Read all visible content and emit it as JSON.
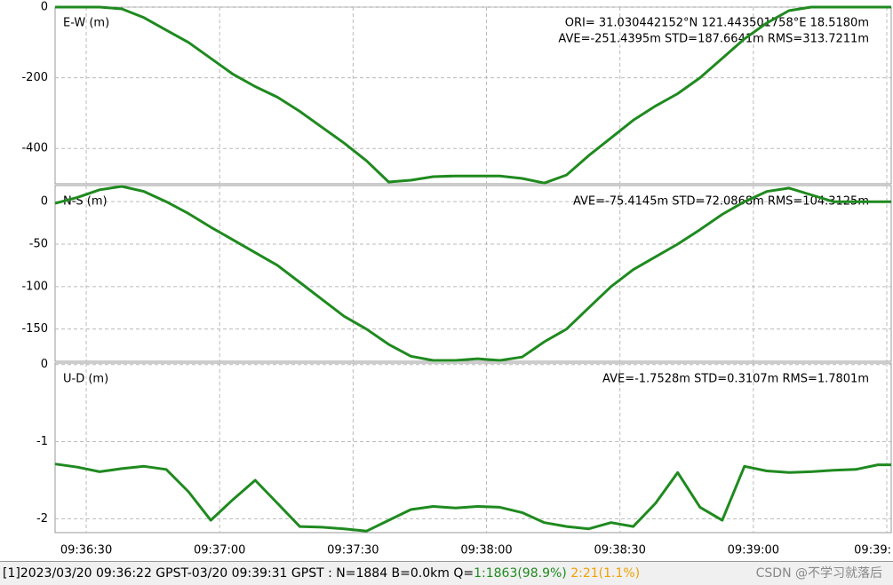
{
  "chart_data": [
    {
      "type": "line",
      "label": "E-W (m)",
      "annotations": [
        "ORI= 31.030442152°N  121.443501758°E 18.5180m",
        "AVE=-251.4395m STD=187.6641m RMS=313.7211m"
      ],
      "xlim": [
        34583,
        34771
      ],
      "ylim": [
        -500,
        0
      ],
      "yticks": [
        0,
        -200,
        -400
      ],
      "grid": true,
      "x": [
        34583,
        34588,
        34593,
        34598,
        34603,
        34608,
        34613,
        34618,
        34623,
        34628,
        34633,
        34638,
        34643,
        34648,
        34653,
        34658,
        34663,
        34668,
        34673,
        34678,
        34683,
        34688,
        34693,
        34698,
        34703,
        34708,
        34713,
        34718,
        34723,
        34728,
        34733,
        34738,
        34743,
        34748,
        34753,
        34758,
        34763,
        34768,
        34771
      ],
      "series": [
        {
          "color": "#1f8a1f",
          "values": [
            0,
            0,
            0,
            -5,
            -30,
            -65,
            -100,
            -145,
            -190,
            -225,
            -255,
            -295,
            -340,
            -385,
            -435,
            -495,
            -490,
            -480,
            -478,
            -478,
            -478,
            -485,
            -498,
            -475,
            -420,
            -370,
            -320,
            -280,
            -245,
            -200,
            -145,
            -90,
            -45,
            -10,
            0,
            0,
            0,
            0,
            0
          ]
        }
      ]
    },
    {
      "type": "line",
      "label": "N-S (m)",
      "annotations": [
        "AVE=-75.4145m STD=72.0868m RMS=104.3125m"
      ],
      "xlim": [
        34583,
        34771
      ],
      "ylim": [
        -188,
        19
      ],
      "yticks": [
        0,
        -50,
        -100,
        -150
      ],
      "grid": true,
      "x": [
        34583,
        34588,
        34593,
        34598,
        34603,
        34608,
        34613,
        34618,
        34623,
        34628,
        34633,
        34638,
        34643,
        34648,
        34653,
        34658,
        34663,
        34668,
        34673,
        34678,
        34683,
        34688,
        34693,
        34698,
        34703,
        34708,
        34713,
        34718,
        34723,
        34728,
        34733,
        34738,
        34743,
        34748,
        34753,
        34758,
        34763,
        34768,
        34771
      ],
      "series": [
        {
          "color": "#1f8a1f",
          "values": [
            -2,
            5,
            14,
            18,
            12,
            0,
            -14,
            -30,
            -45,
            -60,
            -75,
            -95,
            -115,
            -135,
            -150,
            -168,
            -182,
            -187,
            -187,
            -185,
            -187,
            -183,
            -165,
            -150,
            -125,
            -100,
            -80,
            -65,
            -50,
            -33,
            -15,
            0,
            12,
            16,
            8,
            0,
            0,
            0,
            0
          ]
        }
      ]
    },
    {
      "type": "line",
      "label": "U-D (m)",
      "annotations": [
        "AVE=-1.7528m STD=0.3107m RMS=1.7801m"
      ],
      "xlim": [
        34583,
        34771
      ],
      "ylim": [
        -2.18,
        0.02
      ],
      "yticks": [
        0,
        -1,
        -2
      ],
      "grid": true,
      "xticks": [
        {
          "value": 34590,
          "label": "09:36:30"
        },
        {
          "value": 34620,
          "label": "09:37:00"
        },
        {
          "value": 34650,
          "label": "09:37:30"
        },
        {
          "value": 34680,
          "label": "09:38:00"
        },
        {
          "value": 34710,
          "label": "09:38:30"
        },
        {
          "value": 34740,
          "label": "09:39:00"
        },
        {
          "value": 34770,
          "label": "09:39:"
        }
      ],
      "x": [
        34583,
        34588,
        34593,
        34598,
        34603,
        34608,
        34613,
        34618,
        34623,
        34628,
        34633,
        34638,
        34643,
        34648,
        34653,
        34658,
        34663,
        34668,
        34673,
        34678,
        34683,
        34688,
        34693,
        34698,
        34703,
        34708,
        34713,
        34718,
        34723,
        34728,
        34733,
        34738,
        34743,
        34748,
        34753,
        34758,
        34763,
        34768,
        34771
      ],
      "series": [
        {
          "color": "#1f8a1f",
          "values": [
            -1.29,
            -1.33,
            -1.39,
            -1.35,
            -1.32,
            -1.36,
            -1.65,
            -2.02,
            -1.75,
            -1.5,
            -1.8,
            -2.1,
            -2.11,
            -2.13,
            -2.16,
            -2.02,
            -1.88,
            -1.84,
            -1.86,
            -1.84,
            -1.85,
            -1.92,
            -2.05,
            -2.1,
            -2.13,
            -2.05,
            -2.1,
            -1.8,
            -1.4,
            -1.85,
            -2.02,
            -1.32,
            -1.38,
            -1.4,
            -1.39,
            -1.37,
            -1.36,
            -1.3,
            -1.3
          ]
        }
      ]
    }
  ],
  "status_bar": {
    "text": "[1]2023/03/20 09:36:22 GPST-03/20 09:39:31 GPST : N=1884 B=0.0km Q=",
    "q1": "1:1863(98.9%)",
    "q2": "2:21(1.1%)",
    "watermark": "CSDN @不学习就落后"
  }
}
